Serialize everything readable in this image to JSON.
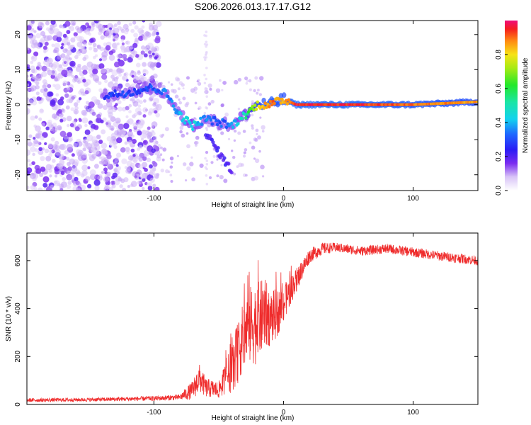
{
  "title": "S206.2026.013.17.17.G12",
  "colors": {
    "snr_line": "#ef2d2d",
    "background": "#ffffff"
  },
  "chart_data": [
    {
      "type": "heatmap",
      "xlabel": "Height of straight line (km)",
      "ylabel": "Frequency (Hz)",
      "xlim": [
        -198,
        150
      ],
      "ylim": [
        -24.5,
        24
      ],
      "xticks": [
        -100,
        0,
        100
      ],
      "yticks": [
        -20,
        -10,
        0,
        10,
        20
      ],
      "colorbar": {
        "label": "Normalized spectral amplitude",
        "range": [
          0,
          1
        ],
        "ticks": [
          "0.0",
          "0.2",
          "0.4",
          "0.6",
          "0.8"
        ],
        "colormap": "rainbow (0 = white/violet, 0.2 = blue, 0.4 = cyan, 0.6 = green, 0.8 = yellow, 1.0 = red/magenta)"
      },
      "ridge": {
        "description": "dominant frequency track vs height",
        "x": [
          -140,
          -120,
          -100,
          -90,
          -80,
          -70,
          -60,
          -50,
          -40,
          -30,
          -20,
          -10,
          0,
          10,
          50,
          100,
          150
        ],
        "freq": [
          2.5,
          3.5,
          5,
          3,
          -3,
          -6,
          -4,
          -5,
          -6,
          -3,
          0,
          0,
          1.5,
          0,
          0,
          0,
          0.8
        ],
        "amplitude": [
          0.25,
          0.3,
          0.3,
          0.35,
          0.4,
          0.45,
          0.35,
          0.3,
          0.35,
          0.5,
          0.8,
          0.9,
          0.85,
          0.95,
          0.95,
          0.9,
          0.85
        ]
      },
      "noise_region": {
        "x_range": [
          -198,
          -100
        ],
        "freq_range": [
          -24.5,
          24
        ],
        "amplitude": "0.0–0.2 scattered"
      }
    },
    {
      "type": "line",
      "xlabel": "Height of straight line (km)",
      "ylabel": "SNR (10 * v/v)",
      "xlim": [
        -198,
        150
      ],
      "ylim": [
        0,
        715
      ],
      "xticks": [
        -100,
        0,
        100
      ],
      "yticks": [
        0,
        200,
        400,
        600
      ],
      "series": [
        {
          "name": "SNR",
          "x": [
            -198,
            -150,
            -100,
            -80,
            -70,
            -65,
            -60,
            -50,
            -40,
            -35,
            -30,
            -25,
            -20,
            -15,
            -10,
            -5,
            0,
            5,
            10,
            15,
            20,
            30,
            40,
            60,
            80,
            100,
            120,
            150
          ],
          "mean": [
            18,
            20,
            25,
            30,
            60,
            110,
            70,
            60,
            150,
            220,
            300,
            330,
            340,
            380,
            360,
            380,
            420,
            470,
            520,
            570,
            620,
            650,
            655,
            640,
            650,
            635,
            620,
            600
          ],
          "spread": [
            8,
            8,
            10,
            12,
            40,
            60,
            40,
            35,
            100,
            130,
            150,
            170,
            170,
            150,
            120,
            100,
            80,
            60,
            50,
            40,
            30,
            25,
            20,
            20,
            20,
            20,
            20,
            20
          ]
        }
      ]
    }
  ]
}
